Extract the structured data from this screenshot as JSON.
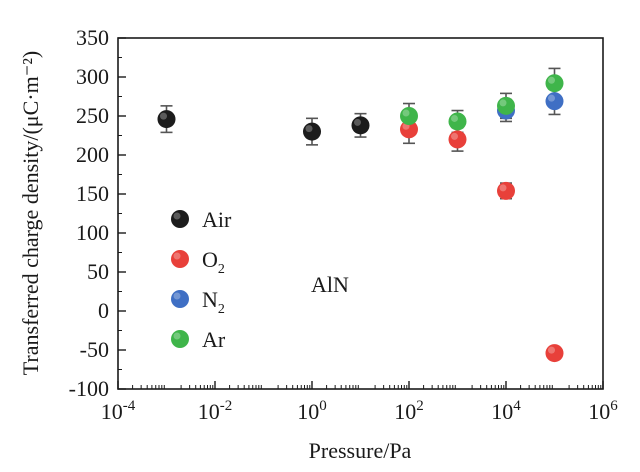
{
  "chart_data": {
    "type": "scatter",
    "xlabel": "Pressure/Pa",
    "ylabel": "Transferred charge density/(μC·m⁻²)",
    "x_scale": "log",
    "xlim": [
      0.0001,
      1000000
    ],
    "ylim": [
      -100,
      350
    ],
    "x_ticks": [
      {
        "value": 0.0001,
        "base": "10",
        "exp": "-4"
      },
      {
        "value": 0.01,
        "base": "10",
        "exp": "-2"
      },
      {
        "value": 1,
        "base": "10",
        "exp": "0"
      },
      {
        "value": 100,
        "base": "10",
        "exp": "2"
      },
      {
        "value": 10000,
        "base": "10",
        "exp": "4"
      },
      {
        "value": 1000000,
        "base": "10",
        "exp": "6"
      }
    ],
    "y_ticks": [
      -100,
      -50,
      0,
      50,
      100,
      150,
      200,
      250,
      300,
      350
    ],
    "y_tick_labels": [
      "-100",
      "-50",
      "0",
      "50",
      "100",
      "150",
      "200",
      "250",
      "300",
      "350"
    ],
    "grid": false,
    "legend_position": "left",
    "series": [
      {
        "name": "Air",
        "sub": "",
        "color": "#1c1c1c",
        "points": [
          {
            "x": 0.001,
            "y": 246,
            "err": 17
          },
          {
            "x": 1,
            "y": 230,
            "err": 17
          },
          {
            "x": 10,
            "y": 238,
            "err": 15
          }
        ]
      },
      {
        "name": "O",
        "sub": "2",
        "color": "#e8403a",
        "points": [
          {
            "x": 100,
            "y": 233,
            "err": 18
          },
          {
            "x": 1000,
            "y": 220,
            "err": 15
          },
          {
            "x": 10000,
            "y": 154,
            "err": 10
          },
          {
            "x": 100000,
            "y": -54,
            "err": 5
          }
        ]
      },
      {
        "name": "N",
        "sub": "2",
        "color": "#3f6fc4",
        "points": [
          {
            "x": 10000,
            "y": 257,
            "err": 14
          },
          {
            "x": 100000,
            "y": 269,
            "err": 17
          }
        ]
      },
      {
        "name": "Ar",
        "sub": "",
        "color": "#3fb54a",
        "points": [
          {
            "x": 100,
            "y": 250,
            "err": 16
          },
          {
            "x": 1000,
            "y": 243,
            "err": 14
          },
          {
            "x": 10000,
            "y": 263,
            "err": 16
          },
          {
            "x": 100000,
            "y": 292,
            "err": 19
          }
        ]
      }
    ],
    "annotations": [
      {
        "text": "AlN"
      }
    ]
  }
}
